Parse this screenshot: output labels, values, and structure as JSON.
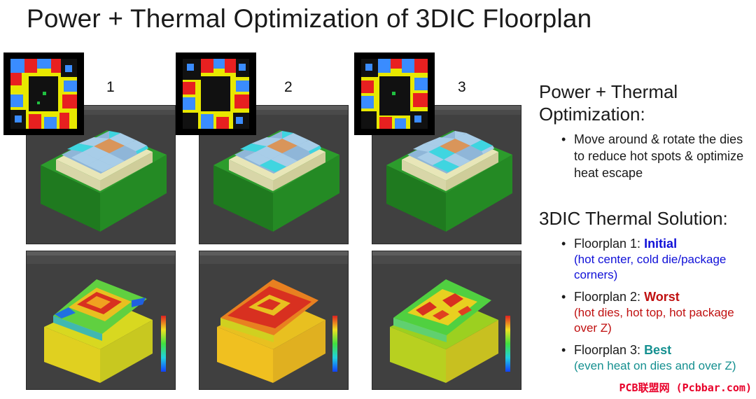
{
  "title": "Power + Thermal Optimization of 3DIC Floorplan",
  "floorplan_numbers": [
    "1",
    "2",
    "3"
  ],
  "section1": {
    "heading_line1": "Power + Thermal",
    "heading_line2": "Optimization:",
    "bullet": "Move around & rotate the dies to reduce hot spots & optimize heat escape"
  },
  "section2": {
    "heading": "3DIC Thermal Solution:",
    "items": [
      {
        "label": "Floorplan 1: ",
        "value": "Initial",
        "note": "(hot center, cold die/package corners)"
      },
      {
        "label": "Floorplan 2: ",
        "value": "Worst",
        "note": "(hot dies, hot top, hot package over Z)"
      },
      {
        "label": "Floorplan 3: ",
        "value": "Best",
        "note": "(even heat on dies and over Z)"
      }
    ]
  },
  "watermark": "PCB联盟网 (Pcbbar.com)",
  "colors": {
    "initial": "#1010d8",
    "worst": "#c01010",
    "best": "#159090",
    "watermark": "#e8002a"
  }
}
